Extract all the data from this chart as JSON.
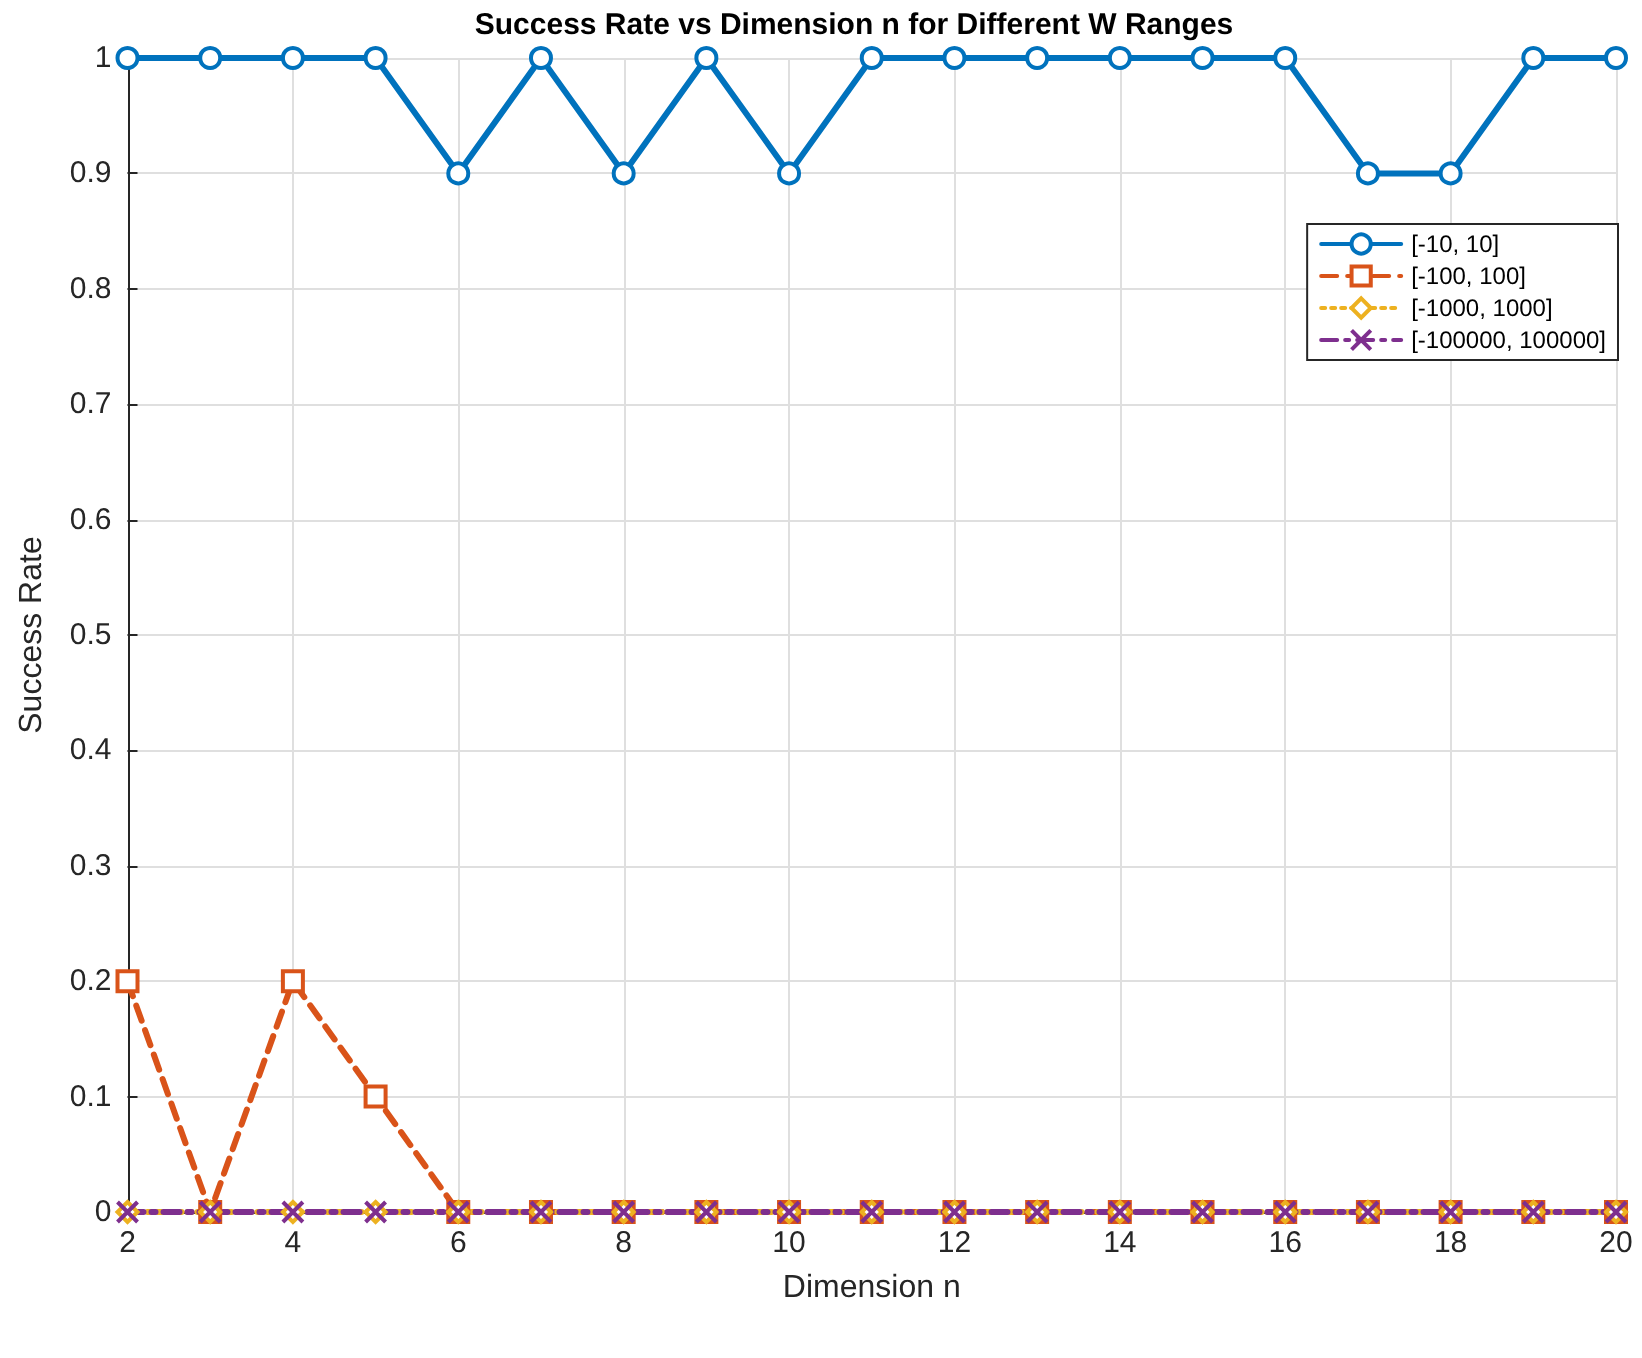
{
  "chart_data": {
    "type": "line",
    "title": "Success Rate vs Dimension n for Different W Ranges",
    "xlabel": "Dimension n",
    "ylabel": "Success Rate",
    "x": [
      2,
      3,
      4,
      5,
      6,
      7,
      8,
      9,
      10,
      11,
      12,
      13,
      14,
      15,
      16,
      17,
      18,
      19,
      20
    ],
    "series": [
      {
        "name": "[-10, 10]",
        "color": "#0072bd",
        "marker": "circle",
        "line_style": "solid",
        "values": [
          1,
          1,
          1,
          1,
          0.9,
          1,
          0.9,
          1,
          0.9,
          1,
          1,
          1,
          1,
          1,
          1,
          0.9,
          0.9,
          1,
          1
        ]
      },
      {
        "name": "[-100, 100]",
        "color": "#d95319",
        "marker": "square",
        "line_style": "dashed",
        "values": [
          0.2,
          0,
          0.2,
          0.1,
          0,
          0,
          0,
          0,
          0,
          0,
          0,
          0,
          0,
          0,
          0,
          0,
          0,
          0,
          0
        ]
      },
      {
        "name": "[-1000, 1000]",
        "color": "#edb120",
        "marker": "diamond",
        "line_style": "dotted",
        "values": [
          0,
          0,
          0,
          0,
          0,
          0,
          0,
          0,
          0,
          0,
          0,
          0,
          0,
          0,
          0,
          0,
          0,
          0,
          0
        ]
      },
      {
        "name": "[-100000, 100000]",
        "color": "#7e2f8e",
        "marker": "cross",
        "line_style": "dashdot",
        "values": [
          0,
          0,
          0,
          0,
          0,
          0,
          0,
          0,
          0,
          0,
          0,
          0,
          0,
          0,
          0,
          0,
          0,
          0,
          0
        ]
      }
    ],
    "xlim": [
      2,
      20
    ],
    "xticks": [
      2,
      4,
      6,
      8,
      10,
      12,
      14,
      16,
      18,
      20
    ],
    "ylim": [
      0,
      1
    ],
    "yticks": [
      0,
      0.1,
      0.2,
      0.3,
      0.4,
      0.5,
      0.6,
      0.7,
      0.8,
      0.9,
      1
    ],
    "grid": true,
    "legend": "top right"
  }
}
